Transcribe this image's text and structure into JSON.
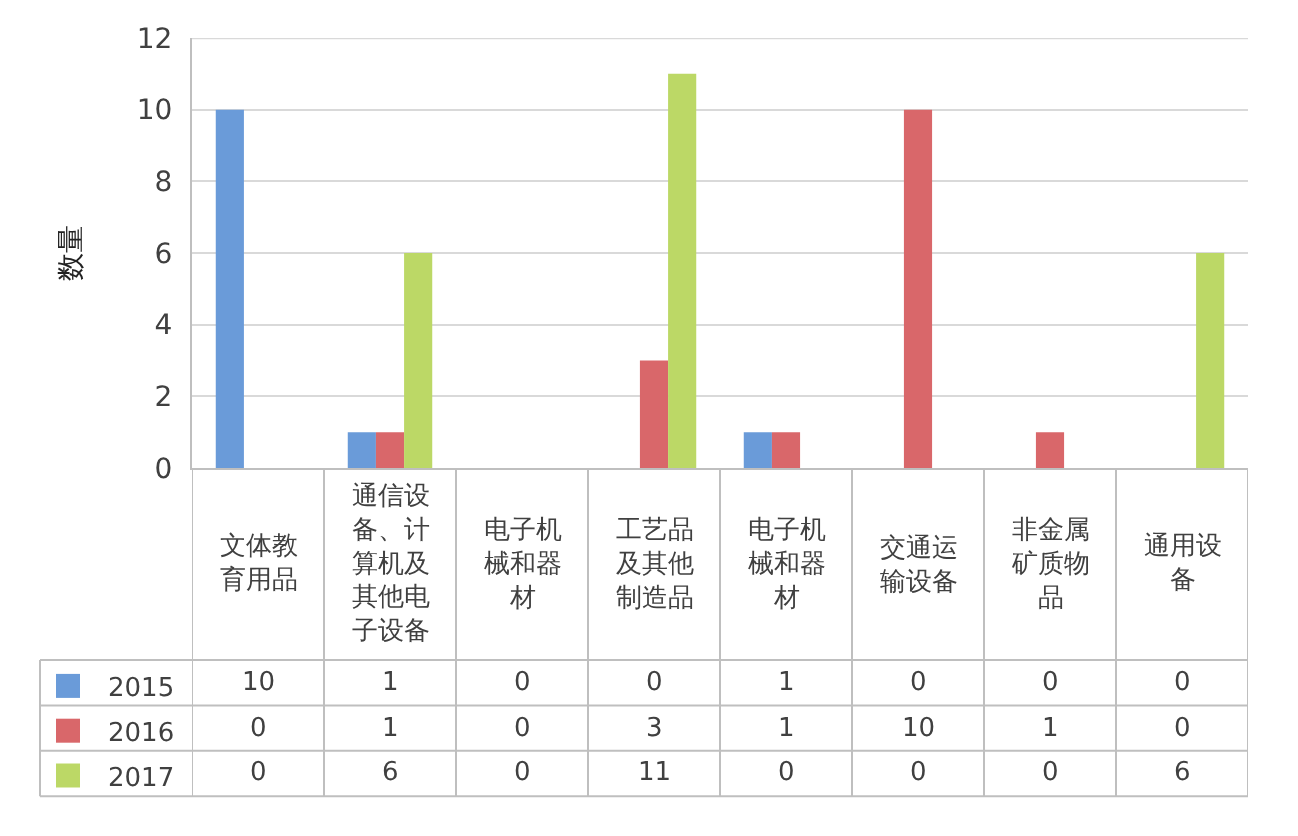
{
  "chart_data": {
    "type": "bar",
    "ylabel": "数量",
    "categories": [
      "文体教育用品",
      "通信设备、计算机及其他电子设备",
      "电子机械和器材",
      "工艺品及其他制造品",
      "电子机械和器材",
      "交通运输设备",
      "非金属矿质物品",
      "通用设备"
    ],
    "series": [
      {
        "name": "2015",
        "color": "#6a9bd9",
        "values": [
          10,
          1,
          0,
          0,
          1,
          0,
          0,
          0
        ]
      },
      {
        "name": "2016",
        "color": "#d9676a",
        "values": [
          0,
          1,
          0,
          3,
          1,
          10,
          1,
          0
        ]
      },
      {
        "name": "2017",
        "color": "#bcd866",
        "values": [
          0,
          6,
          0,
          11,
          0,
          0,
          0,
          6
        ]
      }
    ],
    "ylim": [
      0,
      12
    ],
    "yticks": [
      0,
      2,
      4,
      6,
      8,
      10,
      12
    ],
    "grid": "y",
    "legend": "bottom left",
    "data_labels": true
  }
}
